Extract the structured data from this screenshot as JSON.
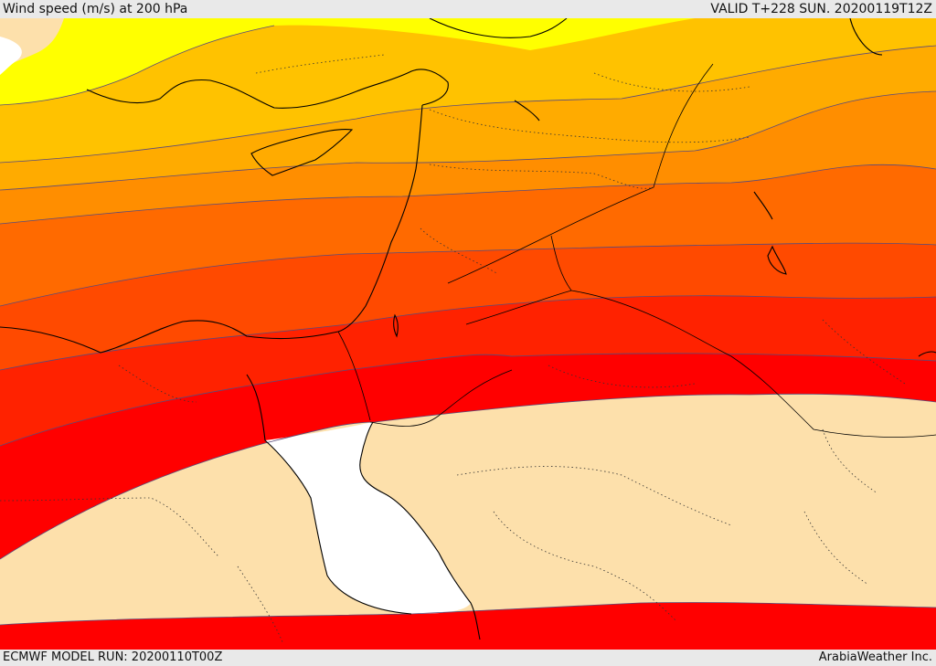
{
  "header": {
    "title": "Wind speed (m/s) at 200 hPa",
    "valid_time": "VALID T+228 SUN. 20200119T12Z"
  },
  "footer": {
    "model_run": "ECMWF MODEL RUN: 20200110T00Z",
    "credit": "ArabiaWeather Inc."
  },
  "colors": {
    "band_1": "#ffff00",
    "band_2": "#ffc200",
    "band_3": "#ffab00",
    "band_4": "#ff8e00",
    "band_5": "#ff6a00",
    "band_6": "#ff4a00",
    "band_7": "#ff2200",
    "band_8": "#ff0000",
    "calm_fill": "#fde0ab",
    "sea_no_data": "#ffffff",
    "contour_line": "#5a4b7a",
    "coastline": "#000000"
  }
}
